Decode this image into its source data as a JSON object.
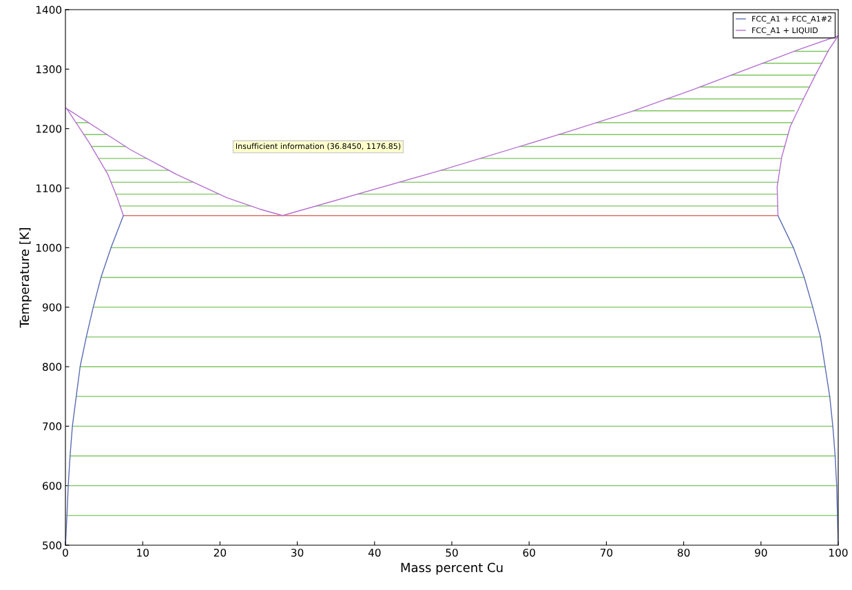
{
  "chart_data": {
    "type": "line",
    "xlabel": "Mass percent Cu",
    "ylabel": "Temperature [K]",
    "xlim": [
      0,
      100
    ],
    "ylim": [
      500,
      1400
    ],
    "xticks": [
      0,
      10,
      20,
      30,
      40,
      50,
      60,
      70,
      80,
      90,
      100
    ],
    "yticks": [
      500,
      600,
      700,
      800,
      900,
      1000,
      1100,
      1200,
      1300,
      1400
    ],
    "grid": false,
    "legend": "top right",
    "marker": "none",
    "line_style": "solid",
    "series": [
      {
        "color": "#7dc65f",
        "x": [
          0.2,
          99.9,
          null,
          0.36,
          99.8,
          null,
          0.6,
          99.6,
          null,
          0.9,
          99.3,
          null,
          1.4,
          98.9,
          null,
          1.9,
          98.3,
          null,
          2.7,
          97.7,
          null,
          3.6,
          96.7,
          null,
          4.6,
          95.6,
          null,
          5.9,
          94.2,
          null,
          7.07,
          24.0,
          null,
          6.5,
          19.9,
          null,
          5.9,
          16.6,
          null,
          5.2,
          13.4,
          null,
          4.3,
          10.5,
          null,
          3.4,
          7.8,
          null,
          2.4,
          5.4,
          null,
          1.4,
          3.0,
          null,
          32.4,
          92.2,
          null,
          37.8,
          92.1,
          null,
          43.2,
          92.2,
          null,
          48.6,
          92.4,
          null,
          53.7,
          92.6,
          null,
          58.8,
          93.1,
          null,
          63.8,
          93.5,
          null,
          68.7,
          94.0,
          null,
          73.5,
          94.3,
          null,
          77.8,
          95.5,
          null,
          82.1,
          96.3,
          null,
          86.2,
          97.0,
          null,
          90.2,
          97.9,
          null,
          94.3,
          98.7
        ],
        "values": [
          550,
          550,
          null,
          600,
          600,
          null,
          650,
          650,
          null,
          700,
          700,
          null,
          750,
          750,
          null,
          800,
          800,
          null,
          850,
          850,
          null,
          900,
          900,
          null,
          950,
          950,
          null,
          1000,
          1000,
          null,
          1070,
          1070,
          null,
          1090,
          1090,
          null,
          1110,
          1110,
          null,
          1130,
          1130,
          null,
          1150,
          1150,
          null,
          1170,
          1170,
          null,
          1190,
          1190,
          null,
          1210,
          1210,
          null,
          1070,
          1070,
          null,
          1090,
          1090,
          null,
          1110,
          1110,
          null,
          1130,
          1130,
          null,
          1150,
          1150,
          null,
          1170,
          1170,
          null,
          1190,
          1190,
          null,
          1210,
          1210,
          null,
          1230,
          1230,
          null,
          1250,
          1250,
          null,
          1270,
          1270,
          null,
          1290,
          1290,
          null,
          1310,
          1310,
          null,
          1330,
          1330
        ]
      },
      {
        "color": "#d9736a",
        "x": [
          7.5,
          92.2
        ],
        "values": [
          1054,
          1054
        ]
      },
      {
        "name": "FCC_A1 + FCC_A1#2",
        "color": "#5a6bb5",
        "x": [
          0,
          0.2,
          0.36,
          0.6,
          0.9,
          1.4,
          1.9,
          2.7,
          3.6,
          4.6,
          5.9,
          7.5,
          null,
          92.2,
          94.2,
          95.6,
          96.7,
          97.7,
          98.3,
          98.9,
          99.3,
          99.6,
          99.8,
          99.9,
          100
        ],
        "values": [
          500,
          550,
          600,
          650,
          700,
          750,
          800,
          850,
          900,
          950,
          1000,
          1054,
          null,
          1054,
          1000,
          950,
          900,
          850,
          800,
          750,
          700,
          650,
          600,
          550,
          500
        ]
      },
      {
        "name": "FCC_A1 + LIQUID",
        "color": "#b56fd0",
        "x": [
          7.5,
          6.7,
          5.5,
          3.1,
          0.2,
          0,
          8.5,
          14.4,
          20.9,
          25.1,
          28.1,
          48.6,
          64.6,
          73.3,
          81.3,
          94.9,
          100,
          98.8,
          97,
          95.5,
          93.8,
          92.7,
          92.1,
          92.2
        ],
        "values": [
          1054,
          1084,
          1123,
          1176,
          1233,
          1235,
          1164,
          1123,
          1084,
          1065,
          1054,
          1130,
          1193,
          1229,
          1266,
          1333,
          1356,
          1333,
          1289,
          1250,
          1204,
          1153,
          1103,
          1054
        ]
      }
    ],
    "annotations": [
      "Insufficient information (36.8450, 1176.85)"
    ]
  }
}
